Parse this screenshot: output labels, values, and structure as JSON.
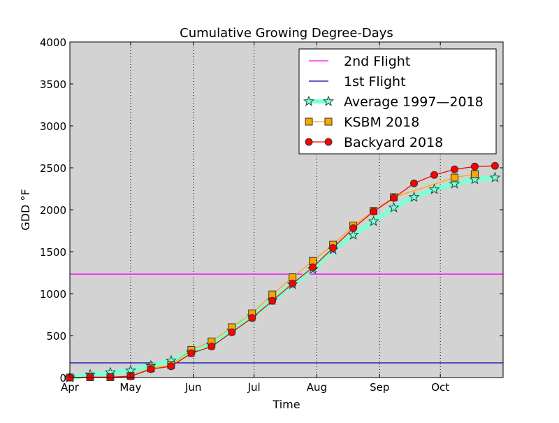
{
  "chart_data": {
    "type": "line",
    "title": "Cumulative Growing Degree-Days",
    "xlabel": "Time",
    "ylabel": "GDD °F",
    "ylim": [
      0,
      4000
    ],
    "yticks": [
      0,
      500,
      1000,
      1500,
      2000,
      2500,
      3000,
      3500,
      4000
    ],
    "xlim_days_from_apr1": [
      0,
      214
    ],
    "xticks": [
      {
        "label": "Apr",
        "day": 0
      },
      {
        "label": "May",
        "day": 30
      },
      {
        "label": "Jun",
        "day": 61
      },
      {
        "label": "Jul",
        "day": 91
      },
      {
        "label": "Aug",
        "day": 122
      },
      {
        "label": "Sep",
        "day": 153
      },
      {
        "label": "Oct",
        "day": 183
      }
    ],
    "grid": "x dotted",
    "legend_position": "top-right",
    "background": "#d3d3d3",
    "hlines": [
      {
        "name": "2nd Flight",
        "value": 1233,
        "color": "#ff00ff"
      },
      {
        "name": "1st Flight",
        "value": 175,
        "color": "#0000aa"
      }
    ],
    "x_days": [
      0,
      10,
      20,
      30,
      40,
      50,
      60,
      70,
      80,
      90,
      100,
      110,
      120,
      130,
      140,
      150,
      160,
      170,
      180,
      190,
      200,
      210
    ],
    "series": [
      {
        "name": "Average 1997—2018",
        "color": "#7fffd4",
        "marker": "star",
        "values": [
          0,
          35,
          60,
          83,
          140,
          200,
          300,
          390,
          560,
          730,
          920,
          1110,
          1290,
          1525,
          1700,
          1861,
          2025,
          2150,
          2242,
          2308,
          2361,
          2383
        ]
      },
      {
        "name": "KSBM 2018",
        "color": "#ffa500",
        "marker": "square",
        "values": [
          0,
          5,
          5,
          20,
          110,
          150,
          330,
          430,
          600,
          765,
          990,
          1195,
          1390,
          1583,
          1811,
          1985,
          2150,
          null,
          null,
          2383,
          2425,
          null
        ]
      },
      {
        "name": "Backyard 2018",
        "color": "#ff0000",
        "marker": "circle",
        "values": [
          0,
          5,
          5,
          15,
          100,
          135,
          290,
          370,
          540,
          710,
          915,
          1120,
          1315,
          1545,
          1780,
          1978,
          2141,
          2315,
          2415,
          2481,
          2515,
          2523
        ]
      }
    ]
  }
}
